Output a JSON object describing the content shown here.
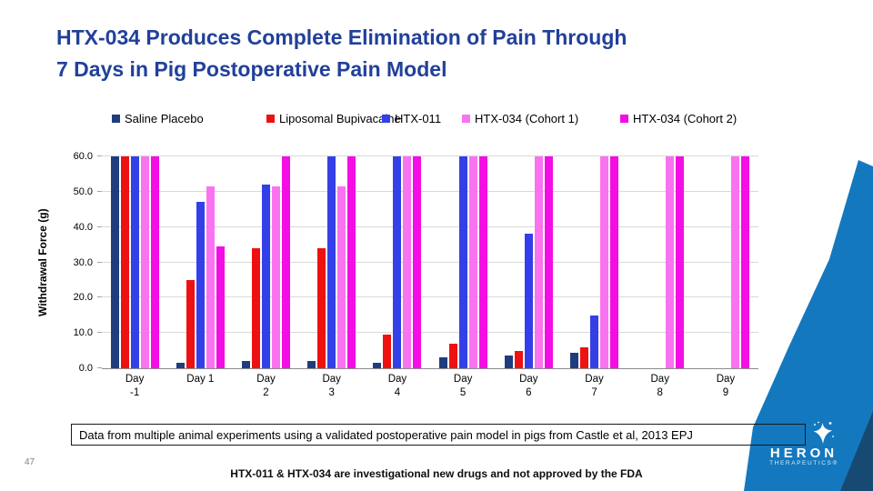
{
  "slide": {
    "title_line1": "HTX-034 Produces Complete Elimination of Pain Through",
    "title_line2": "7 Days in Pig Postoperative Pain Model",
    "title_color": "#21409A",
    "footnote": "Data from multiple animal experiments using a validated postoperative pain model in pigs from Castle et al, 2013 EPJ",
    "page_number": "47",
    "disclaimer": "HTX-011 & HTX-034 are investigational new drugs and not approved by the FDA",
    "accent_wedge_color": "#1478BE",
    "accent_wedge_dark_color": "#164A72"
  },
  "logo": {
    "name": "HERON",
    "subtitle": "THERAPEUTICS®",
    "icon": "heron-bird-splash-icon"
  },
  "chart_data": {
    "type": "bar",
    "title": "",
    "xlabel": "",
    "ylabel": "Withdrawal Force (g)",
    "ylim": [
      0,
      60
    ],
    "ytick_step": 10,
    "ytick_labels": [
      "0.0",
      "10.0",
      "20.0",
      "30.0",
      "40.0",
      "50.0",
      "60.0"
    ],
    "grid": true,
    "legend_position": "top",
    "categories": [
      "Day\n-1",
      "Day 1",
      "Day\n2",
      "Day\n3",
      "Day\n4",
      "Day\n5",
      "Day\n6",
      "Day\n7",
      "Day\n8",
      "Day\n9"
    ],
    "series": [
      {
        "name": "Saline Placebo",
        "color": "#1F3D7C",
        "values": [
          60,
          1.5,
          2,
          2,
          1.5,
          3,
          3.5,
          4.5,
          null,
          null
        ]
      },
      {
        "name": "Liposomal Bupivacaine",
        "color": "#EE1111",
        "values": [
          60,
          25,
          34,
          34,
          9.5,
          7,
          5,
          6,
          null,
          null
        ]
      },
      {
        "name": "HTX-011",
        "color": "#3340E8",
        "values": [
          60,
          47,
          52,
          60,
          60,
          60,
          38,
          15,
          null,
          null
        ]
      },
      {
        "name": "HTX-034 (Cohort 1)",
        "color": "#F973F0",
        "values": [
          60,
          51.5,
          51.5,
          51.5,
          60,
          60,
          60,
          60,
          60,
          60
        ]
      },
      {
        "name": "HTX-034 (Cohort 2)",
        "color": "#F40DE4",
        "values": [
          60,
          34.5,
          60,
          60,
          60,
          60,
          60,
          60,
          60,
          60
        ]
      }
    ],
    "gridline_color": "#D9D9D9"
  }
}
